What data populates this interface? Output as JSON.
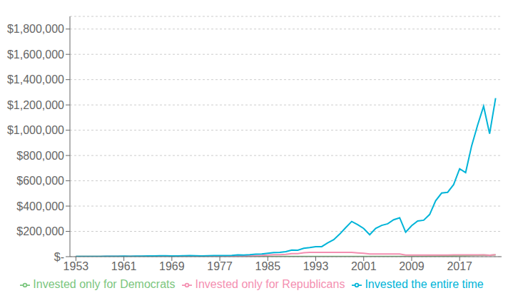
{
  "chart_data": {
    "type": "line",
    "x": [
      1953,
      1954,
      1955,
      1956,
      1957,
      1958,
      1959,
      1960,
      1961,
      1962,
      1963,
      1964,
      1965,
      1966,
      1967,
      1968,
      1969,
      1970,
      1971,
      1972,
      1973,
      1974,
      1975,
      1976,
      1977,
      1978,
      1979,
      1980,
      1981,
      1982,
      1983,
      1984,
      1985,
      1986,
      1987,
      1988,
      1989,
      1990,
      1991,
      1992,
      1993,
      1994,
      1995,
      1996,
      1997,
      1998,
      1999,
      2000,
      2001,
      2002,
      2003,
      2004,
      2005,
      2006,
      2007,
      2008,
      2009,
      2010,
      2011,
      2012,
      2013,
      2014,
      2015,
      2016,
      2017,
      2018,
      2019,
      2020,
      2021,
      2022,
      2023
    ],
    "series": [
      {
        "name": "Invested only for Democrats",
        "color": "#7bc67e",
        "values": [
          1000,
          1000,
          1000,
          1000,
          1000,
          1000,
          1000,
          1000,
          1280,
          1160,
          1390,
          1610,
          1900,
          1720,
          2140,
          2310,
          2110,
          2110,
          2110,
          2110,
          2110,
          2110,
          2110,
          2110,
          2110,
          2110,
          2110,
          2110,
          2110,
          2110,
          2110,
          2110,
          2110,
          2110,
          2110,
          2110,
          2110,
          2110,
          2110,
          2110,
          2110,
          2110,
          2110,
          2110,
          2110,
          2110,
          2110,
          2110,
          2110,
          2110,
          2110,
          2110,
          2110,
          2110,
          2110,
          2110,
          2670,
          3075,
          3140,
          3640,
          4820,
          5480,
          5560,
          6220,
          7570,
          7250,
          9520,
          11300,
          12950,
          10590,
          13620
        ]
      },
      {
        "name": "Invested only for Republicans",
        "color": "#f48fb1",
        "values": [
          1000,
          1400,
          1850,
          1950,
          1720,
          2600,
          3050,
          3000,
          3000,
          3000,
          3000,
          3000,
          3000,
          3000,
          3000,
          3000,
          2740,
          2830,
          3260,
          3880,
          3300,
          2440,
          3340,
          4140,
          3840,
          4130,
          4880,
          6460,
          6160,
          7400,
          9080,
          9670,
          12780,
          15220,
          15990,
          18540,
          24380,
          23660,
          30840,
          33230,
          33230,
          33230,
          33230,
          33230,
          33230,
          33230,
          33230,
          30220,
          26630,
          20700,
          20700,
          20700,
          20700,
          20700,
          20700,
          13060,
          13060,
          13060,
          13060,
          13060,
          13060,
          13060,
          13060,
          14600,
          14600,
          13960,
          14600,
          14600,
          14600,
          11930,
          15360
        ]
      },
      {
        "name": "Invested the entire time",
        "color": "#00b4d8",
        "values": [
          1000,
          1400,
          1850,
          1950,
          1720,
          2600,
          3050,
          3000,
          3850,
          3450,
          4150,
          4800,
          5700,
          5100,
          6400,
          6800,
          6100,
          6200,
          7200,
          8600,
          7200,
          5200,
          7200,
          8900,
          8100,
          8700,
          10400,
          13800,
          13000,
          15700,
          19500,
          20800,
          27400,
          32700,
          34200,
          39800,
          52500,
          50700,
          66300,
          71400,
          78500,
          79500,
          109000,
          134000,
          178600,
          229900,
          278300,
          253100,
          222800,
          173200,
          223200,
          247400,
          259700,
          292100,
          307500,
          194000,
          245000,
          282000,
          288000,
          333800,
          442000,
          503000,
          509000,
          570000,
          695000,
          665000,
          876000,
          1040000,
          1190000,
          972000,
          1254000
        ]
      }
    ],
    "xlim": [
      1952,
      2024
    ],
    "xticks": [
      1953,
      1961,
      1969,
      1977,
      1985,
      1993,
      2001,
      2009,
      2017
    ],
    "ylim": [
      0,
      1900000
    ],
    "yticks": [
      {
        "value": 0,
        "label": "$-"
      },
      {
        "value": 200000,
        "label": "$200,000"
      },
      {
        "value": 400000,
        "label": "$400,000"
      },
      {
        "value": 600000,
        "label": "$600,000"
      },
      {
        "value": 800000,
        "label": "$800,000"
      },
      {
        "value": 1000000,
        "label": "$1,000,000"
      },
      {
        "value": 1200000,
        "label": "$1,200,000"
      },
      {
        "value": 1400000,
        "label": "$1,400,000"
      },
      {
        "value": 1600000,
        "label": "$1,600,000"
      },
      {
        "value": 1800000,
        "label": "$1,800,000"
      }
    ],
    "grid": "y",
    "legend": "bottom"
  }
}
